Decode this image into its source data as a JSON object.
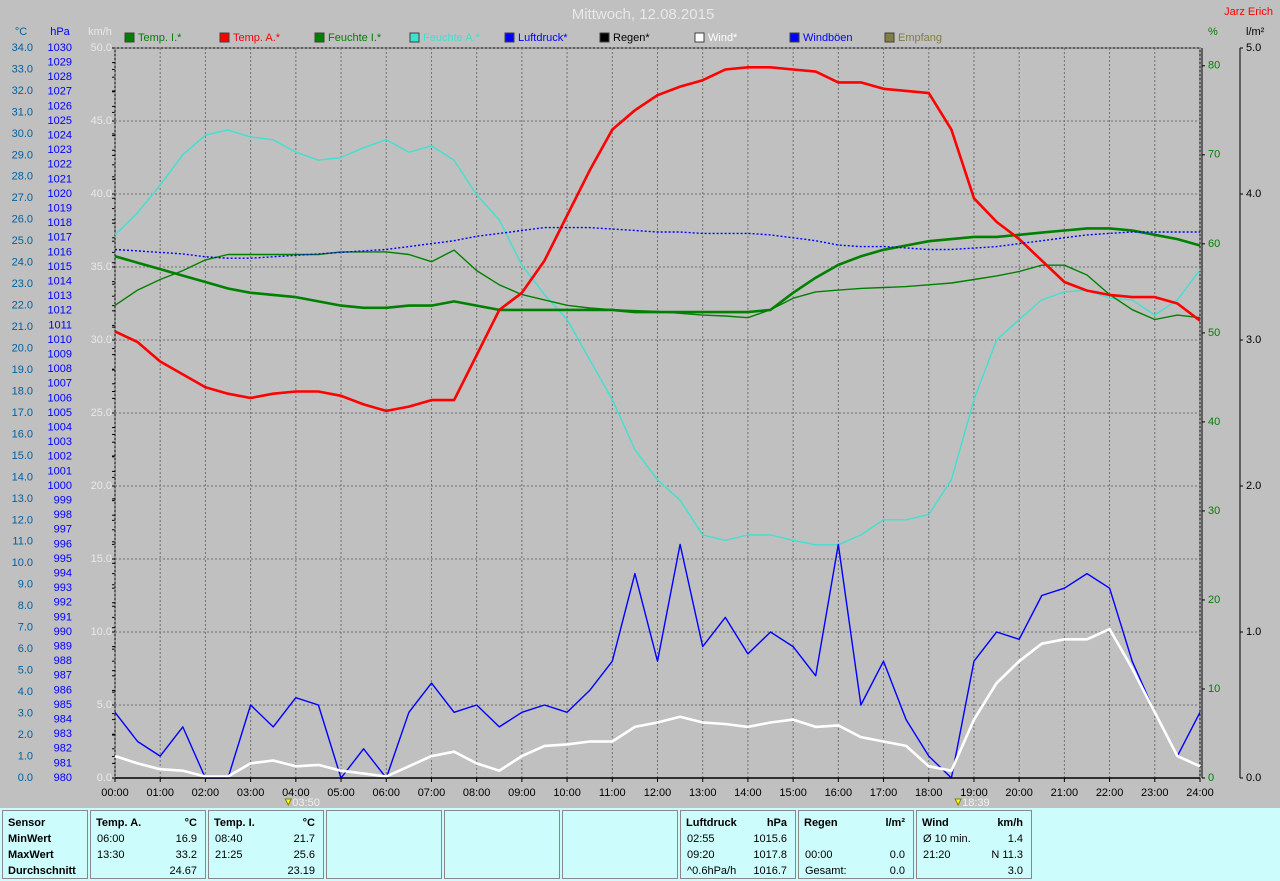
{
  "chart_data": {
    "type": "line",
    "title": "Mittwoch, 12.08.2015",
    "author": "Jarz Erich",
    "x": [
      0,
      0.5,
      1,
      1.5,
      2,
      2.5,
      3,
      3.5,
      4,
      4.5,
      5,
      5.5,
      6,
      6.5,
      7,
      7.5,
      8,
      8.5,
      9,
      9.5,
      10,
      10.5,
      11,
      11.5,
      12,
      12.5,
      13,
      13.5,
      14,
      14.5,
      15,
      15.5,
      16,
      16.5,
      17,
      17.5,
      18,
      18.5,
      19,
      19.5,
      20,
      20.5,
      21,
      21.5,
      22,
      22.5,
      23,
      23.5,
      24
    ],
    "xlim": [
      0,
      24
    ],
    "xticks": [
      {
        "value": 0,
        "label": "00:00"
      },
      {
        "value": 1,
        "label": "01:00"
      },
      {
        "value": 2,
        "label": "02:00"
      },
      {
        "value": 3,
        "label": "03:00"
      },
      {
        "value": 4,
        "label": "04:00"
      },
      {
        "value": 5,
        "label": "05:00"
      },
      {
        "value": 6,
        "label": "06:00"
      },
      {
        "value": 7,
        "label": "07:00"
      },
      {
        "value": 8,
        "label": "08:00"
      },
      {
        "value": 9,
        "label": "09:00"
      },
      {
        "value": 10,
        "label": "10:00"
      },
      {
        "value": 11,
        "label": "11:00"
      },
      {
        "value": 12,
        "label": "12:00"
      },
      {
        "value": 13,
        "label": "13:00"
      },
      {
        "value": 14,
        "label": "14:00"
      },
      {
        "value": 15,
        "label": "15:00"
      },
      {
        "value": 16,
        "label": "16:00"
      },
      {
        "value": 17,
        "label": "17:00"
      },
      {
        "value": 18,
        "label": "18:00"
      },
      {
        "value": 19,
        "label": "19:00"
      },
      {
        "value": 20,
        "label": "20:00"
      },
      {
        "value": 21,
        "label": "21:00"
      },
      {
        "value": 22,
        "label": "22:00"
      },
      {
        "value": 23,
        "label": "23:00"
      },
      {
        "value": 24,
        "label": "24:00"
      }
    ],
    "sun_markers": [
      {
        "x": 3.833,
        "label": "03:50"
      },
      {
        "x": 18.65,
        "label": "18:39"
      }
    ],
    "grid": true,
    "axes": [
      {
        "id": "temp",
        "side": "left",
        "unit": "°C",
        "color": "#0060a0",
        "lim": [
          0,
          34
        ],
        "ticks": [
          {
            "value": 0,
            "label": "0.0"
          },
          {
            "value": 1,
            "label": "1.0"
          },
          {
            "value": 2,
            "label": "2.0"
          },
          {
            "value": 3,
            "label": "3.0"
          },
          {
            "value": 4,
            "label": "4.0"
          },
          {
            "value": 5,
            "label": "5.0"
          },
          {
            "value": 6,
            "label": "6.0"
          },
          {
            "value": 7,
            "label": "7.0"
          },
          {
            "value": 8,
            "label": "8.0"
          },
          {
            "value": 9,
            "label": "9.0"
          },
          {
            "value": 10,
            "label": "10.0"
          },
          {
            "value": 11,
            "label": "11.0"
          },
          {
            "value": 12,
            "label": "12.0"
          },
          {
            "value": 13,
            "label": "13.0"
          },
          {
            "value": 14,
            "label": "14.0"
          },
          {
            "value": 15,
            "label": "15.0"
          },
          {
            "value": 16,
            "label": "16.0"
          },
          {
            "value": 17,
            "label": "17.0"
          },
          {
            "value": 18,
            "label": "18.0"
          },
          {
            "value": 19,
            "label": "19.0"
          },
          {
            "value": 20,
            "label": "20.0"
          },
          {
            "value": 21,
            "label": "21.0"
          },
          {
            "value": 22,
            "label": "22.0"
          },
          {
            "value": 23,
            "label": "23.0"
          },
          {
            "value": 24,
            "label": "24.0"
          },
          {
            "value": 25,
            "label": "25.0"
          },
          {
            "value": 26,
            "label": "26.0"
          },
          {
            "value": 27,
            "label": "27.0"
          },
          {
            "value": 28,
            "label": "28.0"
          },
          {
            "value": 29,
            "label": "29.0"
          },
          {
            "value": 30,
            "label": "30.0"
          },
          {
            "value": 31,
            "label": "31.0"
          },
          {
            "value": 32,
            "label": "32.0"
          },
          {
            "value": 33,
            "label": "33.0"
          },
          {
            "value": 34,
            "label": "34.0"
          }
        ]
      },
      {
        "id": "pressure",
        "side": "left",
        "unit": "hPa",
        "color": "#0000ff",
        "lim": [
          980,
          1030
        ],
        "ticks": [
          980,
          981,
          982,
          983,
          984,
          985,
          986,
          987,
          988,
          989,
          990,
          991,
          992,
          993,
          994,
          995,
          996,
          997,
          998,
          999,
          1000,
          1001,
          1002,
          1003,
          1004,
          1005,
          1006,
          1007,
          1008,
          1009,
          1010,
          1011,
          1012,
          1013,
          1014,
          1015,
          1016,
          1017,
          1018,
          1019,
          1020,
          1021,
          1022,
          1023,
          1024,
          1025,
          1026,
          1027,
          1028,
          1029,
          1030
        ]
      },
      {
        "id": "wind",
        "side": "left",
        "unit": "km/h",
        "color": "#e8e8e8",
        "lim": [
          0,
          50
        ],
        "ticks": [
          {
            "value": 0,
            "label": "0.0"
          },
          {
            "value": 5,
            "label": "5.0"
          },
          {
            "value": 10,
            "label": "10.0"
          },
          {
            "value": 15,
            "label": "15.0"
          },
          {
            "value": 20,
            "label": "20.0"
          },
          {
            "value": 25,
            "label": "25.0"
          },
          {
            "value": 30,
            "label": "30.0"
          },
          {
            "value": 35,
            "label": "35.0"
          },
          {
            "value": 40,
            "label": "40.0"
          },
          {
            "value": 45,
            "label": "45.0"
          },
          {
            "value": 50,
            "label": "50.0"
          }
        ]
      },
      {
        "id": "humidity",
        "side": "right",
        "unit": "%",
        "color": "#008000",
        "lim": [
          0,
          82
        ],
        "ticks": [
          0,
          10,
          20,
          30,
          40,
          50,
          60,
          70,
          80
        ]
      },
      {
        "id": "rain",
        "side": "right",
        "unit": "l/m²",
        "color": "#000000",
        "lim": [
          0,
          5
        ],
        "ticks": [
          {
            "value": 0,
            "label": "0.0"
          },
          {
            "value": 1,
            "label": "1.0"
          },
          {
            "value": 2,
            "label": "2.0"
          },
          {
            "value": 3,
            "label": "3.0"
          },
          {
            "value": 4,
            "label": "4.0"
          },
          {
            "value": 5,
            "label": "5.0"
          }
        ]
      }
    ],
    "series": [
      {
        "name": "Temp. I.*",
        "color": "#008000",
        "axis": "temp",
        "style": "bold",
        "values": [
          24.3,
          24.0,
          23.7,
          23.4,
          23.1,
          22.8,
          22.6,
          22.5,
          22.4,
          22.2,
          22.0,
          21.9,
          21.9,
          22.0,
          22.0,
          22.2,
          22.0,
          21.8,
          21.8,
          21.8,
          21.8,
          21.8,
          21.8,
          21.7,
          21.7,
          21.7,
          21.7,
          21.7,
          21.7,
          21.8,
          22.6,
          23.3,
          23.9,
          24.3,
          24.6,
          24.8,
          25.0,
          25.1,
          25.2,
          25.2,
          25.3,
          25.4,
          25.5,
          25.6,
          25.6,
          25.5,
          25.3,
          25.1,
          24.8
        ]
      },
      {
        "name": "Temp. A.*",
        "color": "#ff0000",
        "axis": "temp",
        "style": "bold",
        "values": [
          20.8,
          20.3,
          19.4,
          18.8,
          18.2,
          17.9,
          17.7,
          17.9,
          18.0,
          18.0,
          17.8,
          17.4,
          17.1,
          17.3,
          17.6,
          17.6,
          19.7,
          21.8,
          22.6,
          24.1,
          26.2,
          28.3,
          30.2,
          31.1,
          31.8,
          32.2,
          32.5,
          33.0,
          33.1,
          33.1,
          33.0,
          32.9,
          32.4,
          32.4,
          32.1,
          32.0,
          31.9,
          30.2,
          27.0,
          25.9,
          25.1,
          24.1,
          23.1,
          22.7,
          22.5,
          22.4,
          22.4,
          22.1,
          21.3
        ]
      },
      {
        "name": "Feuchte I.*",
        "color": "#008000",
        "axis": "humidity",
        "style": "thin",
        "values": [
          53.1,
          54.8,
          56.0,
          57.0,
          58.2,
          58.8,
          58.8,
          58.8,
          58.8,
          58.8,
          59.1,
          59.1,
          59.1,
          58.8,
          58.0,
          59.3,
          57.0,
          55.4,
          54.3,
          53.7,
          53.1,
          52.8,
          52.6,
          52.5,
          52.4,
          52.2,
          52.0,
          51.9,
          51.7,
          52.6,
          53.9,
          54.6,
          54.8,
          55.0,
          55.1,
          55.2,
          55.4,
          55.6,
          56.0,
          56.4,
          56.9,
          57.6,
          57.6,
          56.5,
          54.3,
          52.6,
          51.5,
          52.0,
          51.7
        ]
      },
      {
        "name": "Feuchte A.*",
        "color": "#40e0d0",
        "axis": "humidity",
        "style": "thin",
        "values": [
          61.0,
          63.5,
          66.6,
          70.0,
          72.2,
          72.8,
          72.0,
          71.7,
          70.3,
          69.4,
          69.7,
          70.8,
          71.7,
          70.3,
          71.0,
          69.4,
          65.5,
          62.7,
          57.6,
          54.3,
          51.5,
          47.0,
          42.5,
          36.9,
          33.5,
          31.2,
          27.3,
          26.7,
          27.3,
          27.3,
          26.7,
          26.2,
          26.2,
          27.3,
          29.0,
          29.0,
          29.6,
          33.5,
          42.5,
          49.2,
          51.5,
          53.7,
          54.6,
          54.8,
          53.9,
          53.7,
          52.0,
          53.7,
          57.1
        ]
      },
      {
        "name": "Luftdruck*",
        "color": "#0000ff",
        "axis": "pressure",
        "style": "dotted",
        "values": [
          1016.2,
          1016.1,
          1016.0,
          1015.9,
          1015.7,
          1015.6,
          1015.6,
          1015.7,
          1015.8,
          1015.9,
          1016.0,
          1016.1,
          1016.2,
          1016.4,
          1016.6,
          1016.8,
          1017.1,
          1017.3,
          1017.5,
          1017.7,
          1017.7,
          1017.7,
          1017.6,
          1017.5,
          1017.4,
          1017.4,
          1017.3,
          1017.3,
          1017.3,
          1017.2,
          1017.0,
          1016.8,
          1016.5,
          1016.4,
          1016.4,
          1016.3,
          1016.2,
          1016.2,
          1016.3,
          1016.4,
          1016.6,
          1016.8,
          1017.0,
          1017.2,
          1017.3,
          1017.4,
          1017.4,
          1017.4,
          1017.4
        ]
      },
      {
        "name": "Regen*",
        "color": "#000000",
        "axis": "rain",
        "style": "thin",
        "values": [
          0,
          0,
          0,
          0,
          0,
          0,
          0,
          0,
          0,
          0,
          0,
          0,
          0,
          0,
          0,
          0,
          0,
          0,
          0,
          0,
          0,
          0,
          0,
          0,
          0,
          0,
          0,
          0,
          0,
          0,
          0,
          0,
          0,
          0,
          0,
          0,
          0,
          0,
          0,
          0,
          0,
          0,
          0,
          0,
          0,
          0,
          0,
          0,
          0
        ]
      },
      {
        "name": "Wind*",
        "color": "#ffffff",
        "axis": "wind",
        "style": "bold",
        "values": [
          1.5,
          1.0,
          0.6,
          0.5,
          0.1,
          0.1,
          1.0,
          1.2,
          0.8,
          0.9,
          0.5,
          0.3,
          0.1,
          0.8,
          1.5,
          1.8,
          1.0,
          0.5,
          1.5,
          2.2,
          2.3,
          2.5,
          2.5,
          3.5,
          3.8,
          4.2,
          3.8,
          3.7,
          3.5,
          3.8,
          4.0,
          3.5,
          3.6,
          2.8,
          2.5,
          2.2,
          0.8,
          0.5,
          4.0,
          6.5,
          8.0,
          9.2,
          9.5,
          9.5,
          10.2,
          7.5,
          4.5,
          1.5,
          0.8
        ]
      },
      {
        "name": "Windböen",
        "color": "#0000ff",
        "axis": "wind",
        "style": "thin",
        "values": [
          4.5,
          2.5,
          1.5,
          3.5,
          0,
          0,
          5,
          3.5,
          5.5,
          5,
          0,
          2,
          0,
          4.5,
          6.5,
          4.5,
          5,
          3.5,
          4.5,
          5,
          4.5,
          6,
          8,
          14,
          8,
          16,
          9,
          11,
          8.5,
          10,
          9,
          7,
          16,
          5,
          8,
          4,
          1.5,
          0,
          8,
          10,
          9.5,
          12.5,
          13,
          14,
          13,
          8,
          4.5,
          1.5,
          4.5
        ]
      },
      {
        "name": "Empfang",
        "color": "#808040",
        "axis": "rain",
        "style": "thin",
        "values": null
      }
    ]
  },
  "stats": {
    "sensor": {
      "title": "Sensor",
      "rows": [
        "MinWert",
        "MaxWert",
        "Durchschnitt"
      ]
    },
    "panels": [
      {
        "title": "Temp. A.",
        "unit": "°C",
        "rows": [
          {
            "label": "06:00",
            "value": "16.9"
          },
          {
            "label": "13:30",
            "value": "33.2"
          },
          {
            "value": "24.67"
          }
        ]
      },
      {
        "title": "Temp. I.",
        "unit": "°C",
        "rows": [
          {
            "label": "08:40",
            "value": "21.7"
          },
          {
            "label": "21:25",
            "value": "25.6"
          },
          {
            "value": "23.19"
          }
        ]
      },
      {
        "title": "Luftdruck",
        "unit": "hPa",
        "rows": [
          {
            "label": "02:55",
            "value": "1015.6"
          },
          {
            "label": "09:20",
            "value": "1017.8"
          },
          {
            "label": "^0.6hPa/h",
            "value": "1016.7"
          }
        ]
      },
      {
        "title": "Regen",
        "unit": "l/m²",
        "rows": [
          {},
          {
            "label": "00:00",
            "value": "0.0"
          },
          {
            "label": "Gesamt:",
            "value": "0.0"
          }
        ]
      },
      {
        "title": "Wind",
        "unit": "km/h",
        "rows": [
          {
            "label": "Ø 10 min.",
            "value": "1.4"
          },
          {
            "label": "21:20",
            "value": "N 11.3"
          },
          {
            "value": "3.0"
          }
        ]
      }
    ]
  }
}
